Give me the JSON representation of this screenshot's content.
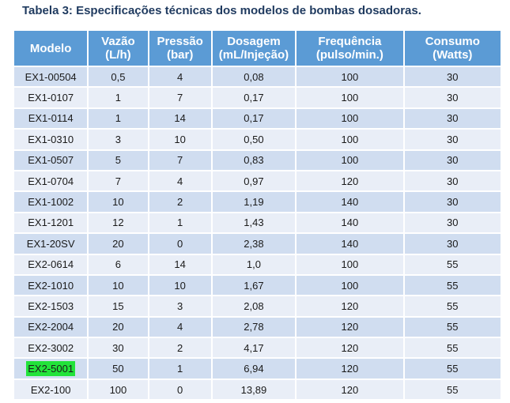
{
  "caption": "Tabela 3: Especificações técnicas dos modelos de bombas dosadoras.",
  "table": {
    "headers": [
      {
        "line1": "Modelo",
        "line2": ""
      },
      {
        "line1": "Vazão",
        "line2": "(L/h)"
      },
      {
        "line1": "Pressão",
        "line2": "(bar)"
      },
      {
        "line1": "Dosagem",
        "line2": "(mL/Injeção)"
      },
      {
        "line1": "Frequência",
        "line2": "(pulso/min.)"
      },
      {
        "line1": "Consumo",
        "line2": "(Watts)"
      }
    ],
    "rows": [
      [
        "EX1-00504",
        "0,5",
        "4",
        "0,08",
        "100",
        "30"
      ],
      [
        "EX1-0107",
        "1",
        "7",
        "0,17",
        "100",
        "30"
      ],
      [
        "EX1-0114",
        "1",
        "14",
        "0,17",
        "100",
        "30"
      ],
      [
        "EX1-0310",
        "3",
        "10",
        "0,50",
        "100",
        "30"
      ],
      [
        "EX1-0507",
        "5",
        "7",
        "0,83",
        "100",
        "30"
      ],
      [
        "EX1-0704",
        "7",
        "4",
        "0,97",
        "120",
        "30"
      ],
      [
        "EX1-1002",
        "10",
        "2",
        "1,19",
        "140",
        "30"
      ],
      [
        "EX1-1201",
        "12",
        "1",
        "1,43",
        "140",
        "30"
      ],
      [
        "EX1-20SV",
        "20",
        "0",
        "2,38",
        "140",
        "30"
      ],
      [
        "EX2-0614",
        "6",
        "14",
        "1,0",
        "100",
        "55"
      ],
      [
        "EX2-1010",
        "10",
        "10",
        "1,67",
        "100",
        "55"
      ],
      [
        "EX2-1503",
        "15",
        "3",
        "2,08",
        "120",
        "55"
      ],
      [
        "EX2-2004",
        "20",
        "4",
        "2,78",
        "120",
        "55"
      ],
      [
        "EX2-3002",
        "30",
        "2",
        "4,17",
        "120",
        "55"
      ],
      [
        "EX2-5001",
        "50",
        "1",
        "6,94",
        "120",
        "55"
      ],
      [
        "EX2-100",
        "100",
        "0",
        "13,89",
        "120",
        "55"
      ]
    ],
    "highlight": {
      "row": 14,
      "col": 0,
      "color": "#22e33a"
    }
  }
}
